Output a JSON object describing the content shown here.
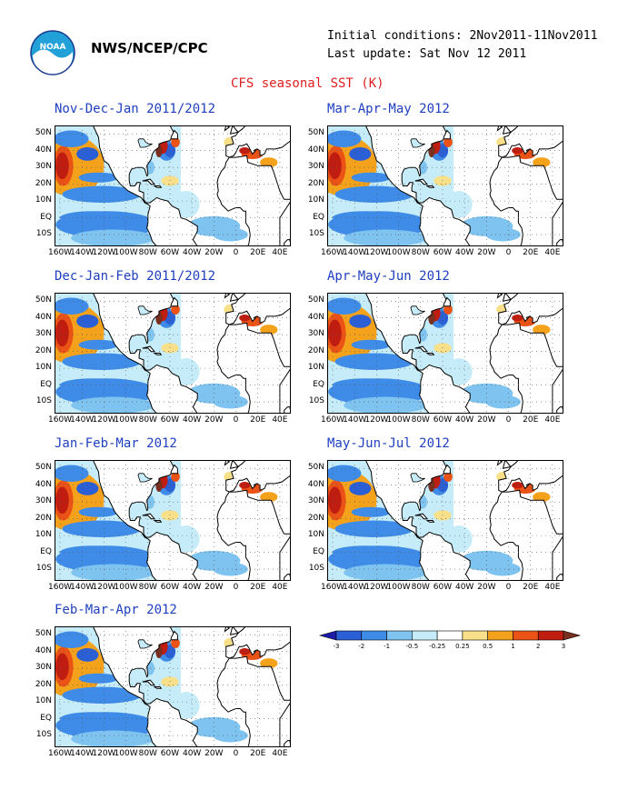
{
  "header": {
    "org": "NWS/NCEP/CPC",
    "initial_conditions": "Initial conditions: 2Nov2011-11Nov2011",
    "last_update": "Last update: Sat Nov 12 2011",
    "title": "CFS seasonal SST (K)",
    "logo_text": "NOAA"
  },
  "axes": {
    "lat_labels": [
      "50N",
      "40N",
      "30N",
      "20N",
      "10N",
      "EQ",
      "10S"
    ],
    "lon_labels": [
      "160W",
      "140W",
      "120W",
      "100W",
      "80W",
      "60W",
      "40W",
      "20W",
      "0",
      "20E",
      "40E"
    ]
  },
  "panels": [
    {
      "title": "Nov-Dec-Jan 2011/2012"
    },
    {
      "title": "Mar-Apr-May 2012"
    },
    {
      "title": "Dec-Jan-Feb 2011/2012"
    },
    {
      "title": "Apr-May-Jun 2012"
    },
    {
      "title": "Jan-Feb-Mar 2012"
    },
    {
      "title": "May-Jun-Jul 2012"
    },
    {
      "title": "Feb-Mar-Apr 2012"
    }
  ],
  "colorbar": {
    "tick_labels": [
      "-3",
      "-2",
      "-1",
      "-0.5",
      "-0.25",
      "0.25",
      "0.5",
      "1",
      "2",
      "3"
    ],
    "colors": [
      "#1c1ca8",
      "#2a5fd6",
      "#3f8ce8",
      "#7fc3f0",
      "#c5ecf8",
      "#ffffff",
      "#f8e08a",
      "#f4a21c",
      "#ea5216",
      "#c01c10",
      "#7a2e1e"
    ]
  }
}
